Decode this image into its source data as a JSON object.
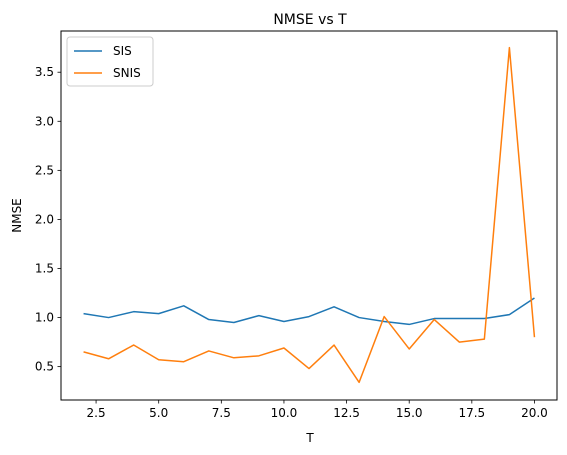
{
  "chart_data": {
    "type": "line",
    "title": "NMSE vs T",
    "xlabel": "T",
    "ylabel": "NMSE",
    "xlim": [
      1.1,
      20.9
    ],
    "ylim": [
      0.16,
      3.92
    ],
    "x_ticks": [
      2.5,
      5.0,
      7.5,
      10.0,
      12.5,
      15.0,
      17.5,
      20.0
    ],
    "x_tick_labels": [
      "2.5",
      "5.0",
      "7.5",
      "10.0",
      "12.5",
      "15.0",
      "17.5",
      "20.0"
    ],
    "y_ticks": [
      0.5,
      1.0,
      1.5,
      2.0,
      2.5,
      3.0,
      3.5
    ],
    "y_tick_labels": [
      "0.5",
      "1.0",
      "1.5",
      "2.0",
      "2.5",
      "3.0",
      "3.5"
    ],
    "grid": false,
    "legend_position": "top-left",
    "x": [
      2,
      3,
      4,
      5,
      6,
      7,
      8,
      9,
      10,
      11,
      12,
      13,
      14,
      15,
      16,
      17,
      18,
      19,
      20
    ],
    "series": [
      {
        "name": "SIS",
        "color": "#1f77b4",
        "values": [
          1.04,
          1.0,
          1.06,
          1.04,
          1.12,
          0.98,
          0.95,
          1.02,
          0.96,
          1.01,
          1.11,
          1.0,
          0.96,
          0.93,
          0.99,
          0.99,
          0.99,
          1.03,
          1.2
        ]
      },
      {
        "name": "SNIS",
        "color": "#ff7f0e",
        "values": [
          0.65,
          0.58,
          0.72,
          0.57,
          0.55,
          0.66,
          0.59,
          0.61,
          0.69,
          0.48,
          0.72,
          0.34,
          1.01,
          0.68,
          0.98,
          0.75,
          0.78,
          3.75,
          0.8
        ]
      }
    ]
  }
}
